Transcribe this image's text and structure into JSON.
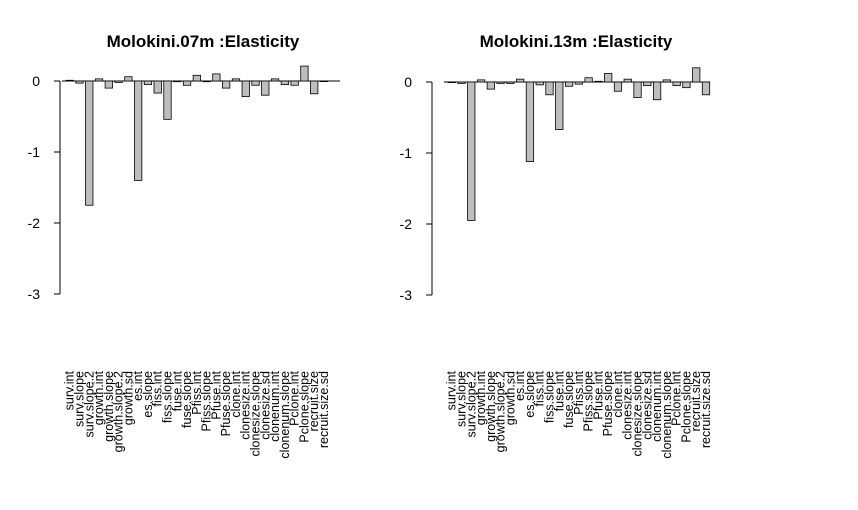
{
  "chart_data": [
    {
      "type": "bar",
      "title": "Molokini.07m :Elasticity",
      "xlabel": "",
      "ylabel": "",
      "ylim": [
        -3,
        0
      ],
      "yticks": [
        "0",
        "-1",
        "-2",
        "-3"
      ],
      "grid": false,
      "categories": [
        "surv.int",
        "surv.slope",
        "surv.slope.2",
        "growth.int",
        "growth.slope",
        "growth.slope.2",
        "growth.sd",
        "es.int",
        "es.slope",
        "fiss.int",
        "fiss.slope",
        "fuse.int",
        "fuse.slope",
        "Pfiss.int",
        "Pfiss.slope",
        "Pfuse.int",
        "Pfuse.slope",
        "clone.int",
        "clonesize.int",
        "clonesize.slope",
        "clonesize.sd",
        "clonenum.int",
        "clonenum.slope",
        "Pclone.int",
        "Pclone.slope",
        "recruit.size",
        "recruit.size.sd"
      ],
      "values": [
        0.01,
        -0.03,
        -1.75,
        0.03,
        -0.1,
        -0.02,
        0.06,
        -1.4,
        -0.05,
        -0.17,
        -0.54,
        -0.01,
        -0.06,
        0.08,
        -0.01,
        0.1,
        -0.1,
        0.03,
        -0.22,
        -0.06,
        -0.2,
        0.03,
        -0.05,
        -0.06,
        0.21,
        -0.18,
        0.0
      ]
    },
    {
      "type": "bar",
      "title": "Molokini.13m :Elasticity",
      "xlabel": "",
      "ylabel": "",
      "ylim": [
        -3,
        0
      ],
      "yticks": [
        "0",
        "-1",
        "-2",
        "-3"
      ],
      "grid": false,
      "categories": [
        "surv.int",
        "surv.slope",
        "surv.slope.2",
        "growth.int",
        "growth.slope",
        "growth.slope.2",
        "growth.sd",
        "es.int",
        "es.slope",
        "fiss.int",
        "fiss.slope",
        "fuse.int",
        "fuse.slope",
        "Pfiss.int",
        "Pfiss.slope",
        "Pfuse.int",
        "Pfuse.slope",
        "clone.int",
        "clonesize.int",
        "clonesize.slope",
        "clonesize.sd",
        "clonenum.int",
        "clonenum.slope",
        "Pclone.int",
        "Pclone.slope",
        "recruit.size",
        "recruit.size.sd"
      ],
      "values": [
        0.0,
        -0.02,
        -1.95,
        0.03,
        -0.1,
        -0.02,
        -0.02,
        0.04,
        -1.12,
        -0.04,
        -0.18,
        -0.67,
        -0.06,
        -0.03,
        0.06,
        0.01,
        0.12,
        -0.13,
        0.04,
        -0.22,
        -0.05,
        -0.25,
        0.03,
        -0.05,
        -0.08,
        0.2,
        -0.18
      ]
    }
  ]
}
